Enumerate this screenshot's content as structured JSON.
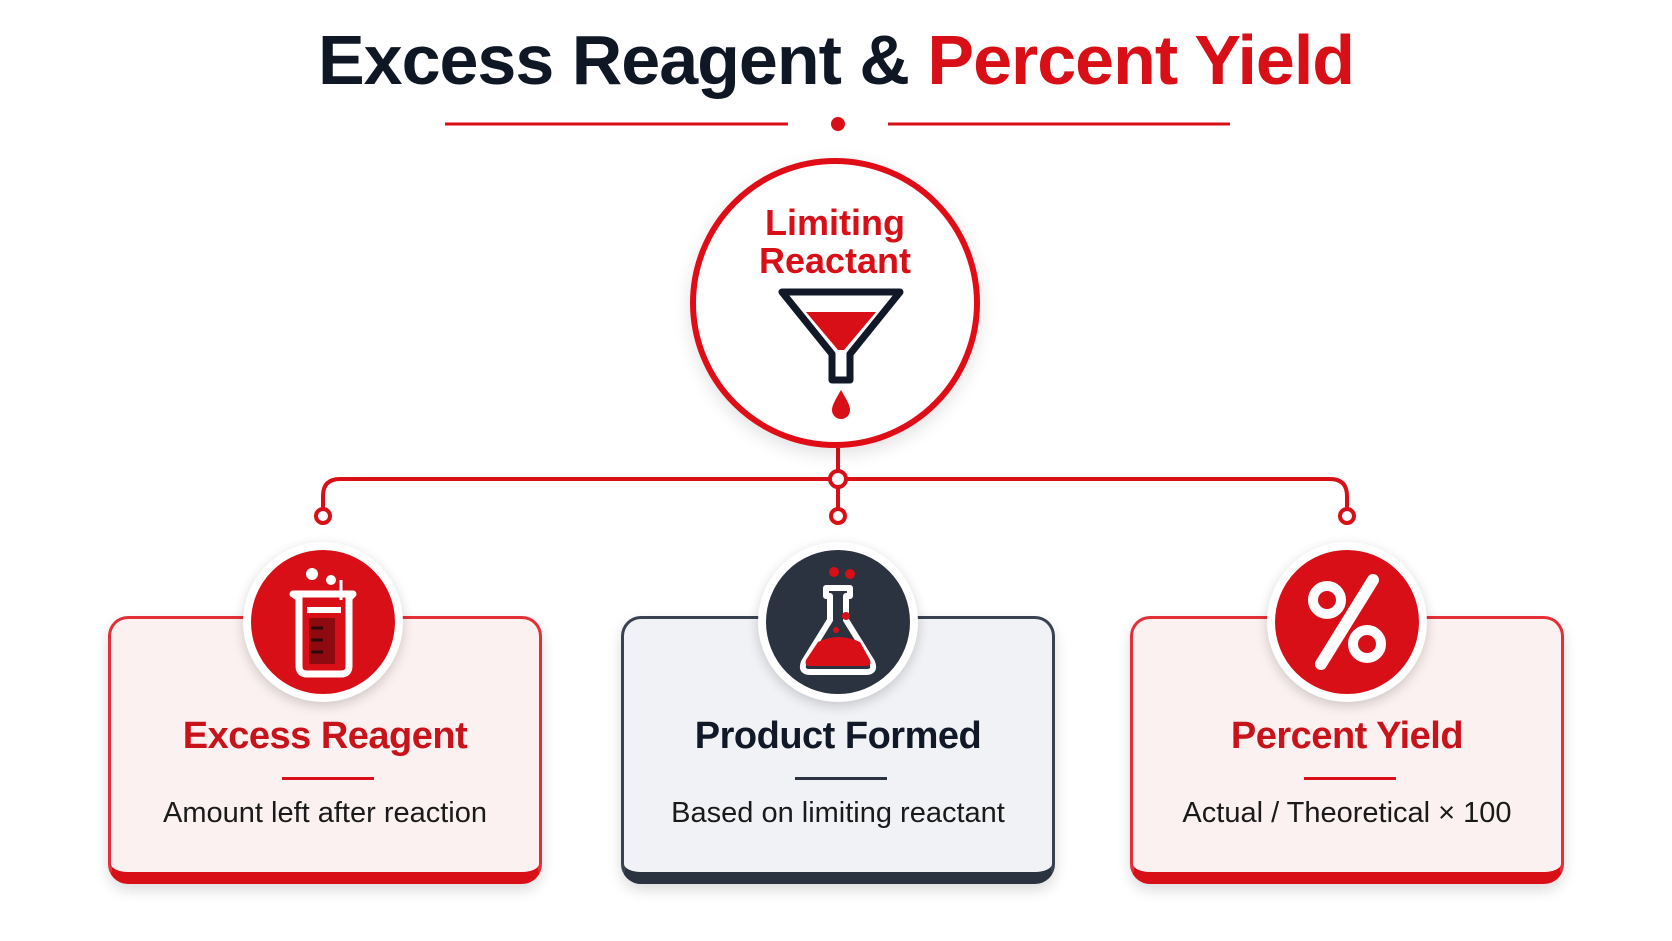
{
  "title": {
    "part1": "Excess Reagent &",
    "part2": "Percent Yield"
  },
  "hub": {
    "label_line1": "Limiting",
    "label_line2": "Reactant",
    "icon": "funnel-icon"
  },
  "cards": [
    {
      "title": "Excess Reagent",
      "description": "Amount left after reaction",
      "icon": "beaker-icon",
      "theme": "red"
    },
    {
      "title": "Product Formed",
      "description": "Based on limiting reactant",
      "icon": "flask-icon",
      "theme": "dark"
    },
    {
      "title": "Percent Yield",
      "description": "Actual / Theoretical × 100",
      "icon": "percent-icon",
      "theme": "red"
    }
  ],
  "colors": {
    "accent": "#d90f17",
    "dark": "#2b3240",
    "text": "#0f1724"
  }
}
